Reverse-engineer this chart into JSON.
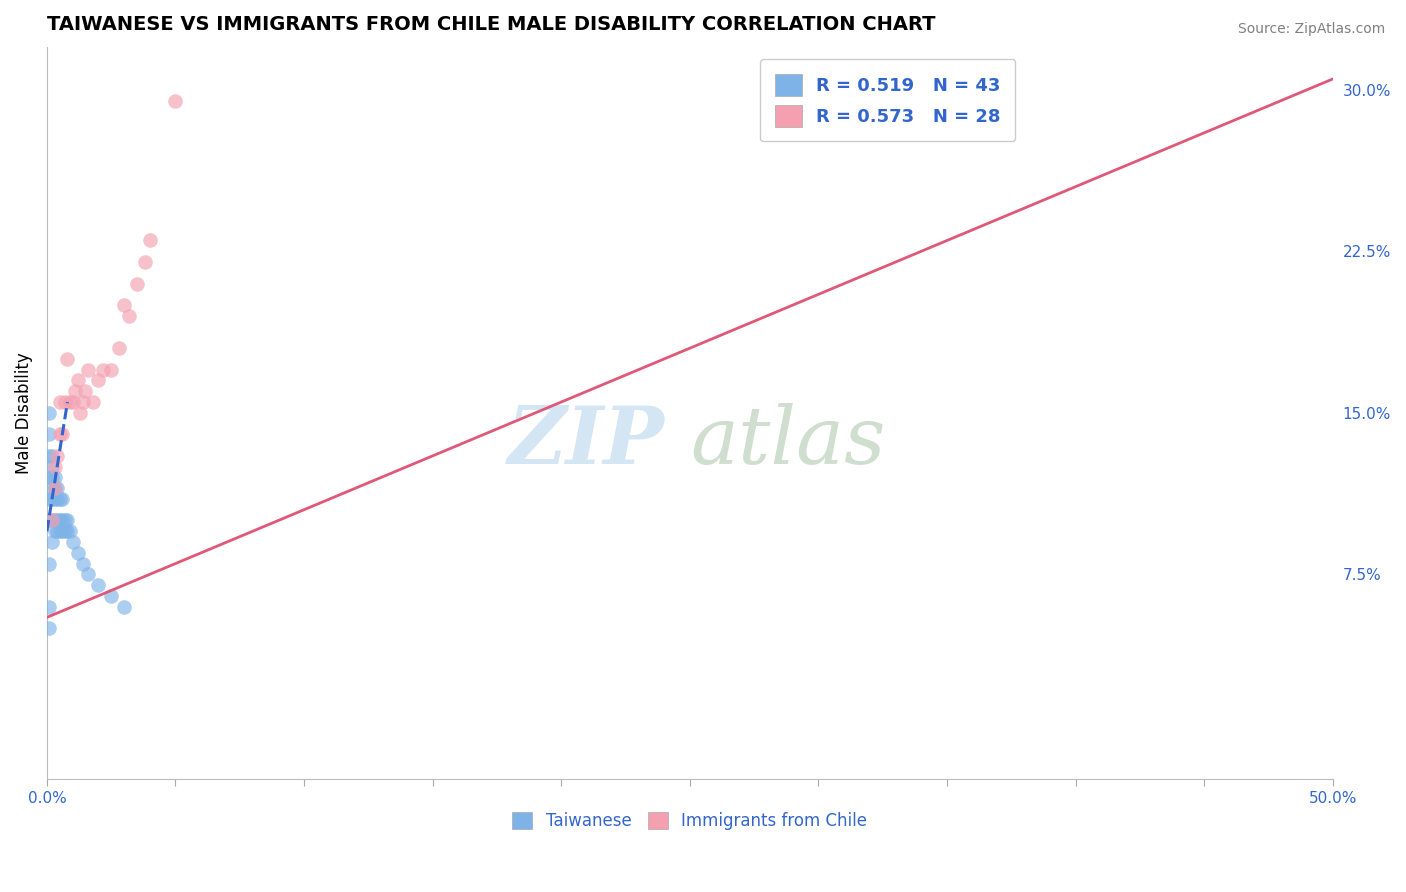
{
  "title": "TAIWANESE VS IMMIGRANTS FROM CHILE MALE DISABILITY CORRELATION CHART",
  "source": "Source: ZipAtlas.com",
  "ylabel": "Male Disability",
  "x_min": 0.0,
  "x_max": 0.5,
  "y_min": -0.02,
  "y_max": 0.32,
  "y_ticks_right": [
    0.075,
    0.15,
    0.225,
    0.3
  ],
  "y_tick_labels_right": [
    "7.5%",
    "15.0%",
    "22.5%",
    "30.0%"
  ],
  "taiwanese_R": 0.519,
  "taiwanese_N": 43,
  "chile_R": 0.573,
  "chile_N": 28,
  "taiwanese_color": "#7EB3E8",
  "chile_color": "#F4A0B0",
  "trendline_taiwanese_color": "#3366CC",
  "trendline_chile_color": "#E05878",
  "legend_taiwanese": "Taiwanese",
  "legend_chile": "Immigrants from Chile",
  "background_color": "#FFFFFF",
  "grid_color": "#CCCCCC",
  "taiwanese_x": [
    0.001,
    0.001,
    0.001,
    0.001,
    0.001,
    0.001,
    0.001,
    0.001,
    0.001,
    0.002,
    0.002,
    0.002,
    0.002,
    0.002,
    0.002,
    0.002,
    0.003,
    0.003,
    0.003,
    0.003,
    0.003,
    0.004,
    0.004,
    0.004,
    0.004,
    0.005,
    0.005,
    0.005,
    0.006,
    0.006,
    0.006,
    0.007,
    0.007,
    0.008,
    0.008,
    0.009,
    0.01,
    0.012,
    0.014,
    0.016,
    0.02,
    0.025,
    0.03
  ],
  "taiwanese_y": [
    0.05,
    0.06,
    0.08,
    0.1,
    0.11,
    0.12,
    0.13,
    0.14,
    0.15,
    0.09,
    0.1,
    0.11,
    0.115,
    0.12,
    0.125,
    0.13,
    0.095,
    0.1,
    0.11,
    0.115,
    0.12,
    0.095,
    0.1,
    0.11,
    0.115,
    0.095,
    0.1,
    0.11,
    0.095,
    0.1,
    0.11,
    0.095,
    0.1,
    0.095,
    0.1,
    0.095,
    0.09,
    0.085,
    0.08,
    0.075,
    0.07,
    0.065,
    0.06
  ],
  "chile_x": [
    0.002,
    0.003,
    0.003,
    0.004,
    0.005,
    0.005,
    0.006,
    0.007,
    0.008,
    0.009,
    0.01,
    0.011,
    0.012,
    0.013,
    0.014,
    0.015,
    0.016,
    0.018,
    0.02,
    0.022,
    0.025,
    0.028,
    0.03,
    0.032,
    0.035,
    0.038,
    0.04,
    0.05
  ],
  "chile_y": [
    0.1,
    0.115,
    0.125,
    0.13,
    0.14,
    0.155,
    0.14,
    0.155,
    0.175,
    0.155,
    0.155,
    0.16,
    0.165,
    0.15,
    0.155,
    0.16,
    0.17,
    0.155,
    0.165,
    0.17,
    0.17,
    0.18,
    0.2,
    0.195,
    0.21,
    0.22,
    0.23,
    0.295
  ],
  "tw_trendline_x": [
    0.0,
    0.008
  ],
  "tw_trendline_y": [
    0.095,
    0.155
  ],
  "ch_trendline_x": [
    0.0,
    0.5
  ],
  "ch_trendline_y": [
    0.055,
    0.305
  ]
}
